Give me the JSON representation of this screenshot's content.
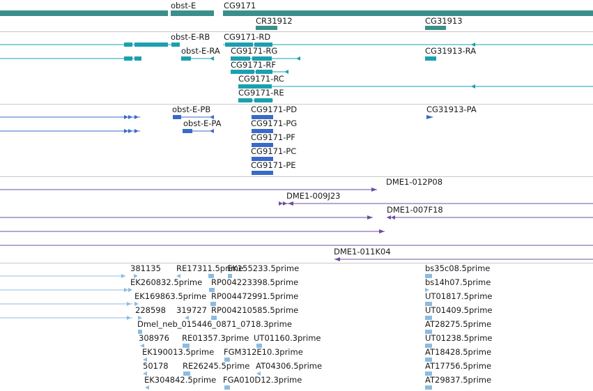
{
  "colors": {
    "gene": "#3a8f8a",
    "transcript": "#1aa0b0",
    "protein": "#3a6ac8",
    "clone": "#6b4fa0",
    "est": "#8cbbe0",
    "separator": "#c8c8c8",
    "text": "#1a1a1a"
  },
  "tracks": {
    "genes": {
      "labels": [
        "obst-E",
        "CG9171",
        "CR31912",
        "CG31913"
      ]
    },
    "transcripts": {
      "labels": [
        "obst-E-RB",
        "CG9171-RD",
        "obst-E-RA",
        "CG9171-RG",
        "CG31913-RA",
        "CG9171-RF",
        "CG9171-RC",
        "CG9171-RE"
      ]
    },
    "proteins": {
      "labels": [
        "obst-E-PB",
        "CG9171-PD",
        "CG31913-PA",
        "obst-E-PA",
        "CG9171-PG",
        "CG9171-PF",
        "CG9171-PC",
        "CG9171-PE"
      ]
    },
    "clones": {
      "labels": [
        "DME1-012P08",
        "DME1-009J23",
        "DME1-007F18",
        "DME1-011K04"
      ]
    },
    "ests": {
      "labels": [
        "381135",
        "RE17311.5prime",
        "EK155233.5prime",
        "bs35c08.5prime",
        "EK260832.5prime",
        "RP004223398.5prime",
        "bs14h07.5prime",
        "EK169863.5prime",
        "RP004472991.5prime",
        "UT01817.5prime",
        "228598",
        "319727",
        "RP004210585.5prime",
        "UT01409.5prime",
        "Dmel_neb_015446_0871_0718.3prime",
        "AT28275.5prime",
        "308976",
        "RE01357.3prime",
        "UT01160.3prime",
        "UT01238.5prime",
        "EK190013.5prime",
        "FGM312E10.3prime",
        "AT18428.5prime",
        "50178",
        "RE26245.5prime",
        "AT04306.5prime",
        "AT17756.5prime",
        "EK304842.5prime",
        "FGA010D12.3prime",
        "AT29837.5prime"
      ]
    }
  }
}
